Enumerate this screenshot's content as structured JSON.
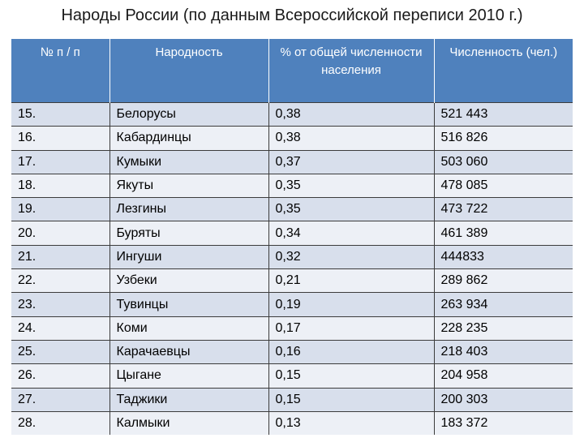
{
  "title": "Народы России (по данным Всероссийской переписи 2010 г.)",
  "table": {
    "headers": [
      "№ п / п",
      "Народность",
      "% от общей численности населения",
      "Численность (чел.)"
    ],
    "rows": [
      [
        "15.",
        "Белорусы",
        "0,38",
        "521 443"
      ],
      [
        "16.",
        "Кабардинцы",
        "0,38",
        "516 826"
      ],
      [
        "17.",
        "Кумыки",
        "0,37",
        "503 060"
      ],
      [
        "18.",
        "Якуты",
        "0,35",
        "478 085"
      ],
      [
        "19.",
        "Лезгины",
        "0,35",
        "473 722"
      ],
      [
        "20.",
        "Буряты",
        "0,34",
        "461 389"
      ],
      [
        "21.",
        "Ингуши",
        "0,32",
        "444833"
      ],
      [
        "22.",
        "Узбеки",
        "0,21",
        "289 862"
      ],
      [
        "23.",
        "Тувинцы",
        "0,19",
        "263 934"
      ],
      [
        "24.",
        "Коми",
        "0,17",
        "228 235"
      ],
      [
        "25.",
        "Карачаевцы",
        "0,16",
        "218 403"
      ],
      [
        "26.",
        "Цыгане",
        "0,15",
        "204 958"
      ],
      [
        "27.",
        "Таджики",
        "0,15",
        "200 303"
      ],
      [
        "28.",
        "Калмыки",
        "0,13",
        "183 372"
      ]
    ]
  },
  "colors": {
    "header_bg": "#4f81bd",
    "row_odd": "#d8dfec",
    "row_even": "#edf0f6"
  }
}
